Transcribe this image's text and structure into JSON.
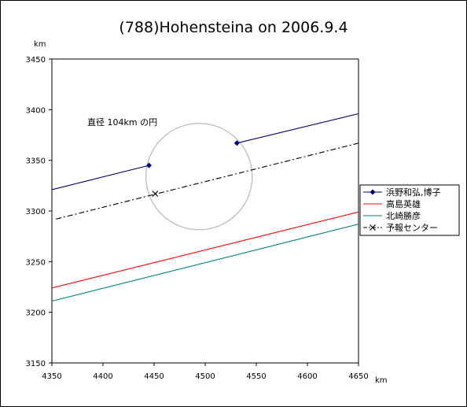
{
  "chart_data": {
    "type": "line",
    "title": "(788)Hohensteina on 2006.9.4",
    "xunit": "km",
    "yunit": "km",
    "xlim": [
      4350,
      4650
    ],
    "ylim": [
      3150,
      3450
    ],
    "xticks": [
      "4350",
      "4400",
      "4450",
      "4500",
      "4550",
      "4600",
      "4650"
    ],
    "yticks": [
      "3450",
      "3400",
      "3350",
      "3300",
      "3250",
      "3200",
      "3150"
    ],
    "grid": false,
    "legend_position": "right",
    "annotation": "直径 104km の円",
    "circle": {
      "cx": 4494,
      "cy": 3334,
      "diameter": 104,
      "color": "#c0c0c0"
    },
    "series": [
      {
        "name": "浜野和弘,博子",
        "color": "#000080",
        "marker": "diamond",
        "segments": [
          [
            [
              4350,
              3321
            ],
            [
              4445,
              3345
            ]
          ],
          [
            [
              4531,
              3367
            ],
            [
              4654,
              3397
            ]
          ]
        ]
      },
      {
        "name": "高島英雄",
        "color": "#ff0000",
        "marker": "none",
        "segments": [
          [
            [
              4350,
              3224
            ],
            [
              4654,
              3300
            ]
          ]
        ]
      },
      {
        "name": "北崎勝彦",
        "color": "#008080",
        "marker": "none",
        "segments": [
          [
            [
              4350,
              3211
            ],
            [
              4654,
              3288
            ]
          ]
        ]
      },
      {
        "name": "予報センター",
        "color": "#000000",
        "marker": "x",
        "dash": "dashdot",
        "segments": [
          [
            [
              4354,
              3292
            ],
            [
              4654,
              3368
            ]
          ]
        ],
        "marker_points": [
          [
            4451,
            3317
          ]
        ]
      }
    ]
  }
}
